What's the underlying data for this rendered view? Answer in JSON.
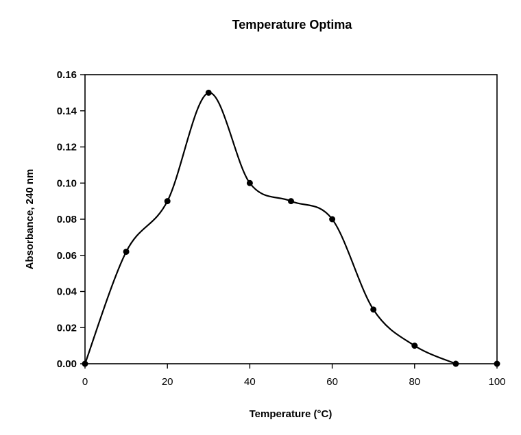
{
  "chart_data": {
    "type": "line",
    "title": "Temperature Optima",
    "xlabel": "Temperature (",
    "xlabel_unit": "°C",
    "xlabel_close": ")",
    "ylabel": "Absorbance, 240 nm",
    "xlim": [
      0,
      100
    ],
    "ylim": [
      0,
      0.16
    ],
    "x_ticks": [
      0,
      20,
      40,
      60,
      80,
      100
    ],
    "x_tick_labels": [
      "0",
      "20",
      "40",
      "60",
      "80",
      "100"
    ],
    "y_ticks": [
      0,
      0.02,
      0.04,
      0.06,
      0.08,
      0.1,
      0.12,
      0.14,
      0.16
    ],
    "y_tick_labels": [
      "0.00",
      "0.02",
      "0.04",
      "0.06",
      "0.08",
      "0.10",
      "0.12",
      "0.14",
      "0.16"
    ],
    "grid": false,
    "smooth": true,
    "series": [
      {
        "name": "Absorbance",
        "color": "#000000",
        "x": [
          0,
          10,
          20,
          30,
          40,
          50,
          60,
          70,
          80,
          90,
          100
        ],
        "values": [
          0.0,
          0.062,
          0.09,
          0.15,
          0.1,
          0.09,
          0.08,
          0.03,
          0.01,
          0.0,
          0.0
        ],
        "curve_points": 10
      }
    ]
  }
}
